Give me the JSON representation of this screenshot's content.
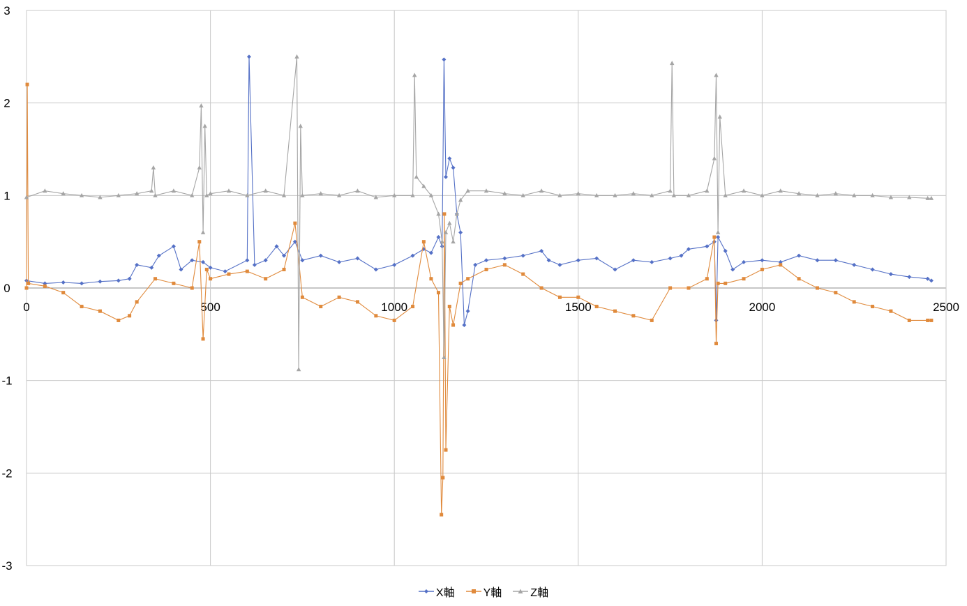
{
  "chart_data": {
    "type": "line",
    "title": "",
    "xlabel": "",
    "ylabel": "",
    "xlim": [
      0,
      2500
    ],
    "ylim": [
      -3,
      3
    ],
    "x_ticks": [
      0,
      500,
      1000,
      1500,
      2000,
      2500
    ],
    "y_ticks": [
      3,
      2,
      1,
      0,
      -1,
      -2,
      -3
    ],
    "x_tick_labels": [
      "0",
      "500",
      "1000",
      "1500",
      "2000",
      "2500"
    ],
    "y_tick_labels": [
      "3",
      "2",
      "1",
      "0",
      "-1",
      "-2",
      "-3"
    ],
    "grid": true,
    "legend_position": "bottom",
    "series": [
      {
        "name": "X軸",
        "color": "#5470c6",
        "marker": "diamond",
        "x": [
          0,
          50,
          100,
          150,
          200,
          250,
          280,
          300,
          340,
          360,
          400,
          420,
          450,
          480,
          500,
          540,
          600,
          605,
          620,
          650,
          680,
          700,
          730,
          750,
          800,
          850,
          900,
          950,
          1000,
          1050,
          1080,
          1100,
          1120,
          1130,
          1135,
          1140,
          1150,
          1160,
          1170,
          1180,
          1190,
          1200,
          1220,
          1250,
          1300,
          1350,
          1400,
          1420,
          1450,
          1500,
          1550,
          1600,
          1650,
          1700,
          1750,
          1780,
          1800,
          1850,
          1870,
          1875,
          1880,
          1900,
          1920,
          1950,
          2000,
          2050,
          2100,
          2150,
          2200,
          2250,
          2300,
          2350,
          2400,
          2450,
          2460
        ],
        "y": [
          0.08,
          0.05,
          0.06,
          0.05,
          0.07,
          0.08,
          0.1,
          0.25,
          0.22,
          0.35,
          0.45,
          0.2,
          0.3,
          0.28,
          0.22,
          0.18,
          0.3,
          2.5,
          0.25,
          0.3,
          0.45,
          0.35,
          0.5,
          0.3,
          0.35,
          0.28,
          0.32,
          0.2,
          0.25,
          0.35,
          0.42,
          0.38,
          0.55,
          0.45,
          2.47,
          1.2,
          1.4,
          1.3,
          0.8,
          0.6,
          -0.4,
          -0.25,
          0.25,
          0.3,
          0.32,
          0.35,
          0.4,
          0.3,
          0.25,
          0.3,
          0.32,
          0.2,
          0.3,
          0.28,
          0.32,
          0.35,
          0.42,
          0.45,
          0.5,
          -0.35,
          0.55,
          0.4,
          0.2,
          0.28,
          0.3,
          0.28,
          0.35,
          0.3,
          0.3,
          0.25,
          0.2,
          0.15,
          0.12,
          0.1,
          0.08
        ]
      },
      {
        "name": "Y軸",
        "color": "#e08a3c",
        "marker": "square",
        "x": [
          0,
          2,
          5,
          50,
          100,
          150,
          200,
          250,
          280,
          300,
          350,
          400,
          450,
          470,
          480,
          490,
          500,
          550,
          600,
          650,
          700,
          730,
          750,
          800,
          850,
          900,
          950,
          1000,
          1050,
          1080,
          1100,
          1120,
          1128,
          1132,
          1136,
          1140,
          1150,
          1160,
          1180,
          1200,
          1250,
          1300,
          1350,
          1400,
          1450,
          1500,
          1550,
          1600,
          1650,
          1700,
          1750,
          1800,
          1850,
          1870,
          1875,
          1880,
          1900,
          1950,
          2000,
          2050,
          2100,
          2150,
          2200,
          2250,
          2300,
          2350,
          2400,
          2450,
          2460
        ],
        "y": [
          0.0,
          2.2,
          0.05,
          0.02,
          -0.05,
          -0.2,
          -0.25,
          -0.35,
          -0.3,
          -0.15,
          0.1,
          0.05,
          0.0,
          0.5,
          -0.55,
          0.2,
          0.1,
          0.15,
          0.18,
          0.1,
          0.2,
          0.7,
          -0.1,
          -0.2,
          -0.1,
          -0.15,
          -0.3,
          -0.35,
          -0.2,
          0.5,
          0.1,
          -0.05,
          -2.45,
          -2.05,
          0.8,
          -1.75,
          -0.2,
          -0.4,
          0.05,
          0.1,
          0.2,
          0.25,
          0.15,
          0.0,
          -0.1,
          -0.1,
          -0.2,
          -0.25,
          -0.3,
          -0.35,
          0.0,
          0.0,
          0.1,
          0.55,
          -0.6,
          0.05,
          0.05,
          0.1,
          0.2,
          0.25,
          0.1,
          0.0,
          -0.05,
          -0.15,
          -0.2,
          -0.25,
          -0.35,
          -0.35,
          -0.35
        ]
      },
      {
        "name": "Z軸",
        "color": "#a5a5a5",
        "marker": "triangle",
        "x": [
          0,
          50,
          100,
          150,
          200,
          250,
          300,
          340,
          345,
          350,
          400,
          450,
          470,
          475,
          480,
          485,
          490,
          500,
          550,
          600,
          650,
          700,
          735,
          740,
          745,
          750,
          800,
          850,
          900,
          950,
          1000,
          1050,
          1055,
          1060,
          1080,
          1100,
          1120,
          1130,
          1135,
          1140,
          1150,
          1160,
          1170,
          1180,
          1200,
          1250,
          1300,
          1350,
          1400,
          1450,
          1500,
          1550,
          1600,
          1650,
          1700,
          1750,
          1755,
          1760,
          1800,
          1850,
          1870,
          1875,
          1880,
          1885,
          1900,
          1950,
          2000,
          2050,
          2100,
          2150,
          2200,
          2250,
          2300,
          2350,
          2400,
          2450,
          2460
        ],
        "y": [
          0.98,
          1.05,
          1.02,
          1.0,
          0.98,
          1.0,
          1.02,
          1.05,
          1.3,
          1.0,
          1.05,
          1.0,
          1.3,
          1.97,
          0.6,
          1.75,
          1.0,
          1.02,
          1.05,
          1.0,
          1.05,
          1.0,
          2.5,
          -0.88,
          1.75,
          1.0,
          1.02,
          1.0,
          1.05,
          0.98,
          1.0,
          1.0,
          2.3,
          1.2,
          1.1,
          1.0,
          0.8,
          0.5,
          -0.75,
          0.6,
          0.7,
          0.5,
          0.8,
          0.95,
          1.05,
          1.05,
          1.02,
          1.0,
          1.05,
          1.0,
          1.02,
          1.0,
          1.0,
          1.02,
          1.0,
          1.05,
          2.43,
          1.0,
          1.0,
          1.05,
          1.4,
          2.3,
          0.6,
          1.85,
          1.0,
          1.05,
          1.0,
          1.05,
          1.02,
          1.0,
          1.02,
          1.0,
          1.0,
          0.98,
          0.98,
          0.97,
          0.97
        ]
      }
    ]
  }
}
